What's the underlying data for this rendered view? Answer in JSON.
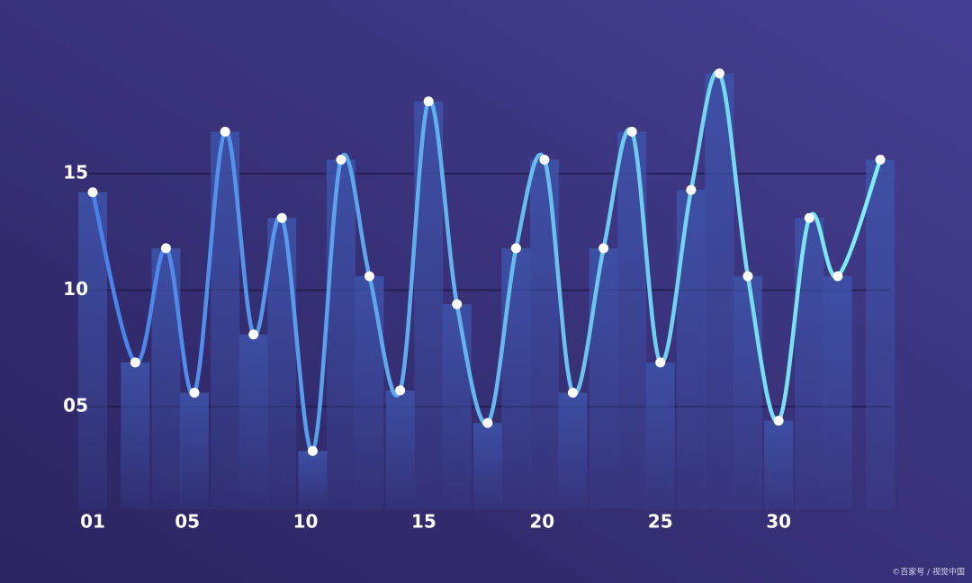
{
  "chart_data": {
    "type": "line",
    "watermark": "©百家号 / 视觉中国",
    "x": [
      1.0,
      2.8,
      4.1,
      5.3,
      6.6,
      7.8,
      9.0,
      10.3,
      11.5,
      12.7,
      14.0,
      15.2,
      16.4,
      17.7,
      18.9,
      20.1,
      21.3,
      22.6,
      23.8,
      25.0,
      26.3,
      27.5,
      28.7,
      30.0,
      31.3,
      32.5,
      34.3
    ],
    "values": [
      14.2,
      6.9,
      11.8,
      5.6,
      16.8,
      8.1,
      13.1,
      3.1,
      15.6,
      10.6,
      5.7,
      18.1,
      9.4,
      4.3,
      11.8,
      15.6,
      5.6,
      11.8,
      16.8,
      6.9,
      14.3,
      19.3,
      10.6,
      4.4,
      13.1,
      10.6,
      15.6
    ],
    "xlim": [
      -0.3,
      34.5
    ],
    "ylim": [
      0.6,
      19.8
    ],
    "xticks": [
      {
        "value": 1,
        "label": "01"
      },
      {
        "value": 5,
        "label": "05"
      },
      10,
      15,
      20,
      25,
      30
    ],
    "yticks": [
      {
        "value": 5,
        "label": "05"
      },
      10,
      15
    ],
    "line_color_start": "#4b7fe9",
    "line_color_end": "#80eef2",
    "bar_color": "#3d52a8",
    "grid": true,
    "smooth": true
  }
}
